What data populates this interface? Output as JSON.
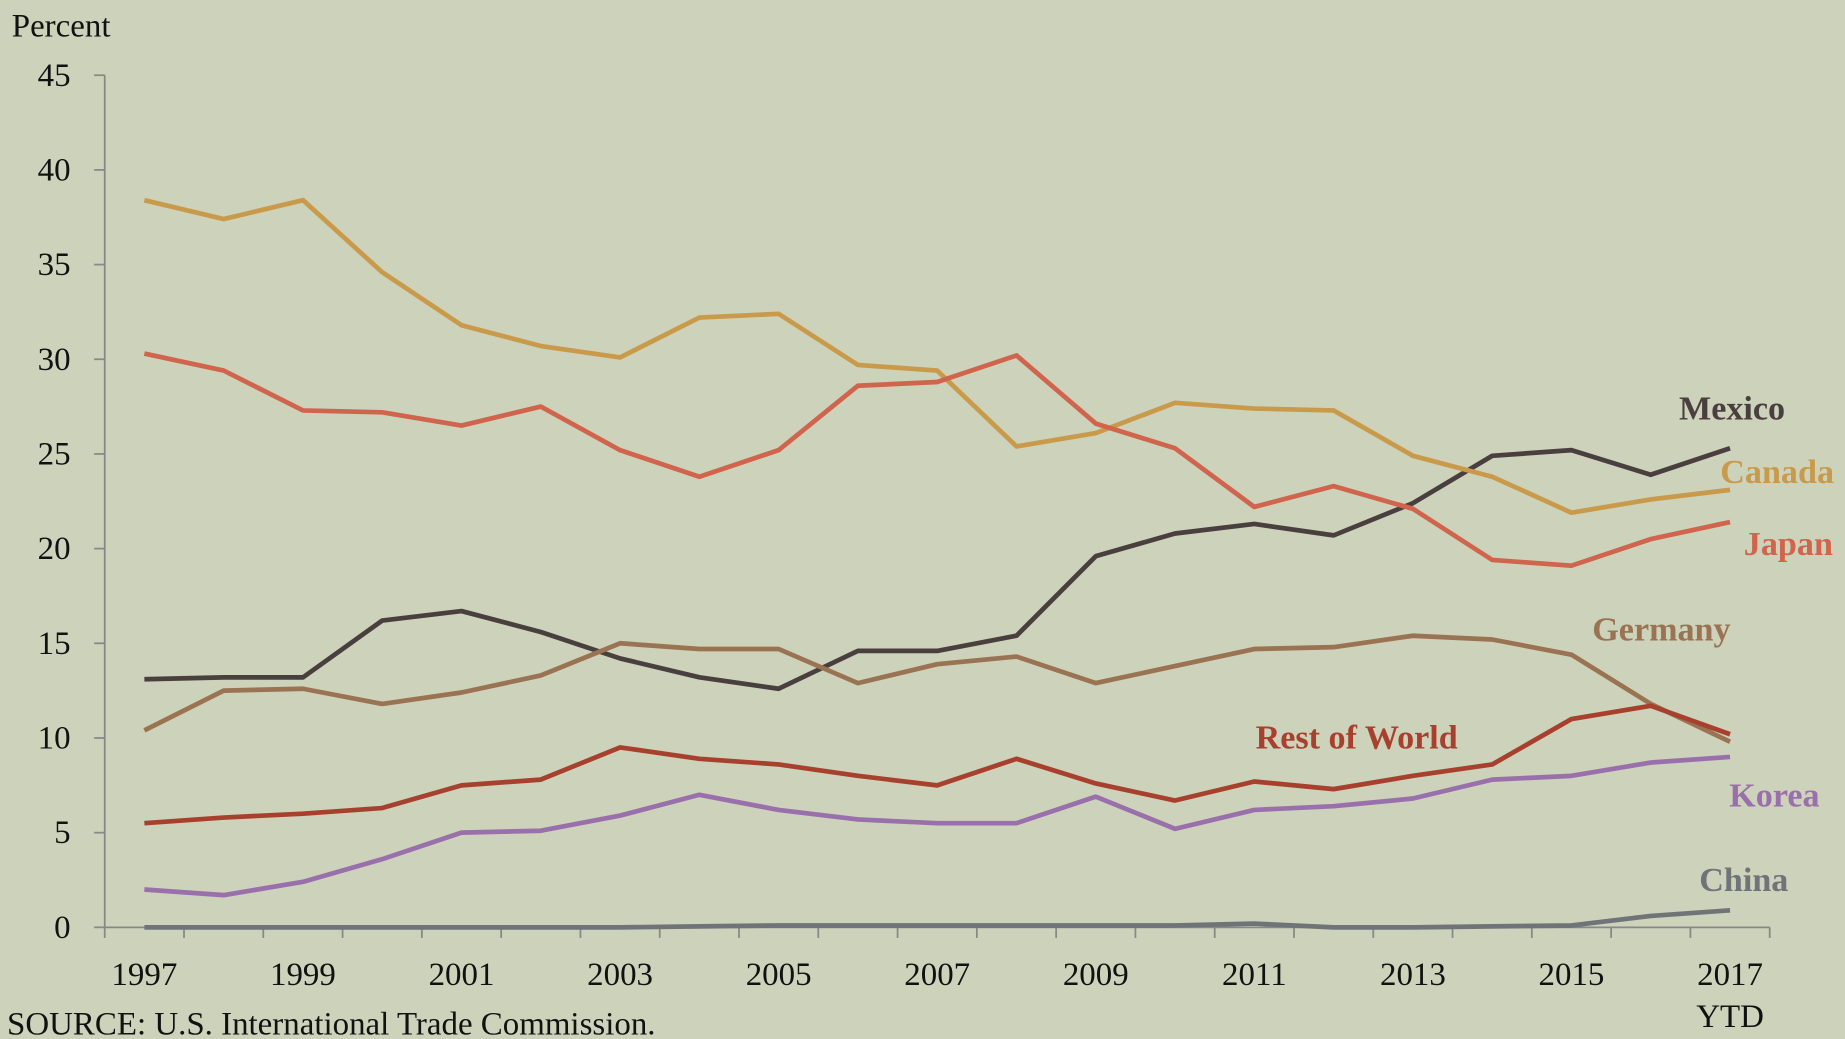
{
  "chart_data": {
    "type": "line",
    "y_label": "Percent",
    "source": "SOURCE: U.S. International Trade Commission.",
    "categories": [
      "1997",
      null,
      "1999",
      null,
      "2001",
      null,
      "2003",
      null,
      "2005",
      null,
      "2007",
      null,
      "2009",
      null,
      "2011",
      null,
      "2013",
      null,
      "2015",
      null,
      "2017 YTD"
    ],
    "ylim": [
      0,
      45
    ],
    "yticks": [
      0,
      5,
      10,
      15,
      20,
      25,
      30,
      35,
      40,
      45
    ],
    "grid": false,
    "series": [
      {
        "name": "Mexico",
        "color": "#4a3f3f",
        "values": [
          13.1,
          13.2,
          13.2,
          16.2,
          16.7,
          15.6,
          14.2,
          13.2,
          12.6,
          14.6,
          14.6,
          15.4,
          19.6,
          20.8,
          21.3,
          20.7,
          22.4,
          24.9,
          25.2,
          23.9,
          25.3
        ]
      },
      {
        "name": "Canada",
        "color": "#c99a4a",
        "values": [
          38.4,
          37.4,
          38.4,
          34.6,
          31.8,
          30.7,
          30.1,
          32.2,
          32.4,
          29.7,
          29.4,
          25.4,
          26.1,
          27.7,
          27.4,
          27.3,
          24.9,
          23.8,
          21.9,
          22.6,
          23.1
        ]
      },
      {
        "name": "Japan",
        "color": "#d0644c",
        "values": [
          30.3,
          29.4,
          27.3,
          27.2,
          26.5,
          27.5,
          25.2,
          23.8,
          25.2,
          28.6,
          28.8,
          30.2,
          26.6,
          25.3,
          22.2,
          23.3,
          22.1,
          19.4,
          19.1,
          20.5,
          21.4
        ]
      },
      {
        "name": "Germany",
        "color": "#9a7352",
        "values": [
          10.4,
          12.5,
          12.6,
          11.8,
          12.4,
          13.3,
          15.0,
          14.7,
          14.7,
          12.9,
          13.9,
          14.3,
          12.9,
          13.8,
          14.7,
          14.8,
          15.4,
          15.2,
          14.4,
          11.8,
          9.8
        ]
      },
      {
        "name": "Rest of World",
        "color": "#a8402e",
        "values": [
          5.5,
          5.8,
          6.0,
          6.3,
          7.5,
          7.8,
          9.5,
          8.9,
          8.6,
          8.0,
          7.5,
          8.9,
          7.6,
          6.7,
          7.7,
          7.3,
          8.0,
          8.6,
          11.0,
          11.7,
          10.2
        ]
      },
      {
        "name": "Korea",
        "color": "#9a70ac",
        "values": [
          2.0,
          1.7,
          2.4,
          3.6,
          5.0,
          5.1,
          5.9,
          7.0,
          6.2,
          5.7,
          5.5,
          5.5,
          6.9,
          5.2,
          6.2,
          6.4,
          6.8,
          7.8,
          8.0,
          8.7,
          9.0
        ]
      },
      {
        "name": "China",
        "color": "#6f7478",
        "values": [
          0,
          0,
          0,
          0,
          0,
          0,
          0,
          0.05,
          0.1,
          0.1,
          0.1,
          0.1,
          0.1,
          0.1,
          0.2,
          0,
          0,
          0.05,
          0.1,
          0.6,
          0.9
        ]
      }
    ]
  }
}
